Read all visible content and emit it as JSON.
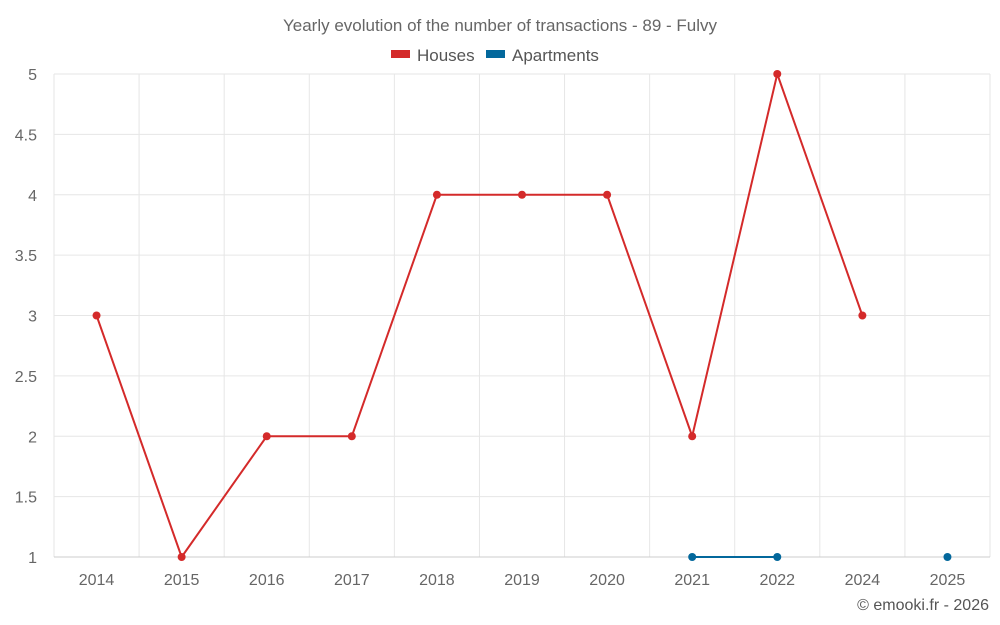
{
  "chart_data": {
    "type": "line",
    "title": "Yearly evolution of the number of transactions - 89 - Fulvy",
    "categories": [
      "2014",
      "2015",
      "2016",
      "2017",
      "2018",
      "2019",
      "2020",
      "2021",
      "2022",
      "2024",
      "2025"
    ],
    "series": [
      {
        "name": "Houses",
        "color": "#d42a2a",
        "values": [
          3,
          1,
          2,
          2,
          4,
          4,
          4,
          2,
          5,
          3,
          null
        ]
      },
      {
        "name": "Apartments",
        "color": "#03689c",
        "values": [
          null,
          null,
          null,
          null,
          null,
          null,
          null,
          1,
          1,
          null,
          1
        ]
      }
    ],
    "ylim": [
      1,
      5
    ],
    "yticks": [
      "1",
      "1.5",
      "2",
      "2.5",
      "3",
      "3.5",
      "4",
      "4.5",
      "5"
    ],
    "grid": true,
    "legend_position": "top-center",
    "footer": "© emooki.fr - 2026"
  }
}
